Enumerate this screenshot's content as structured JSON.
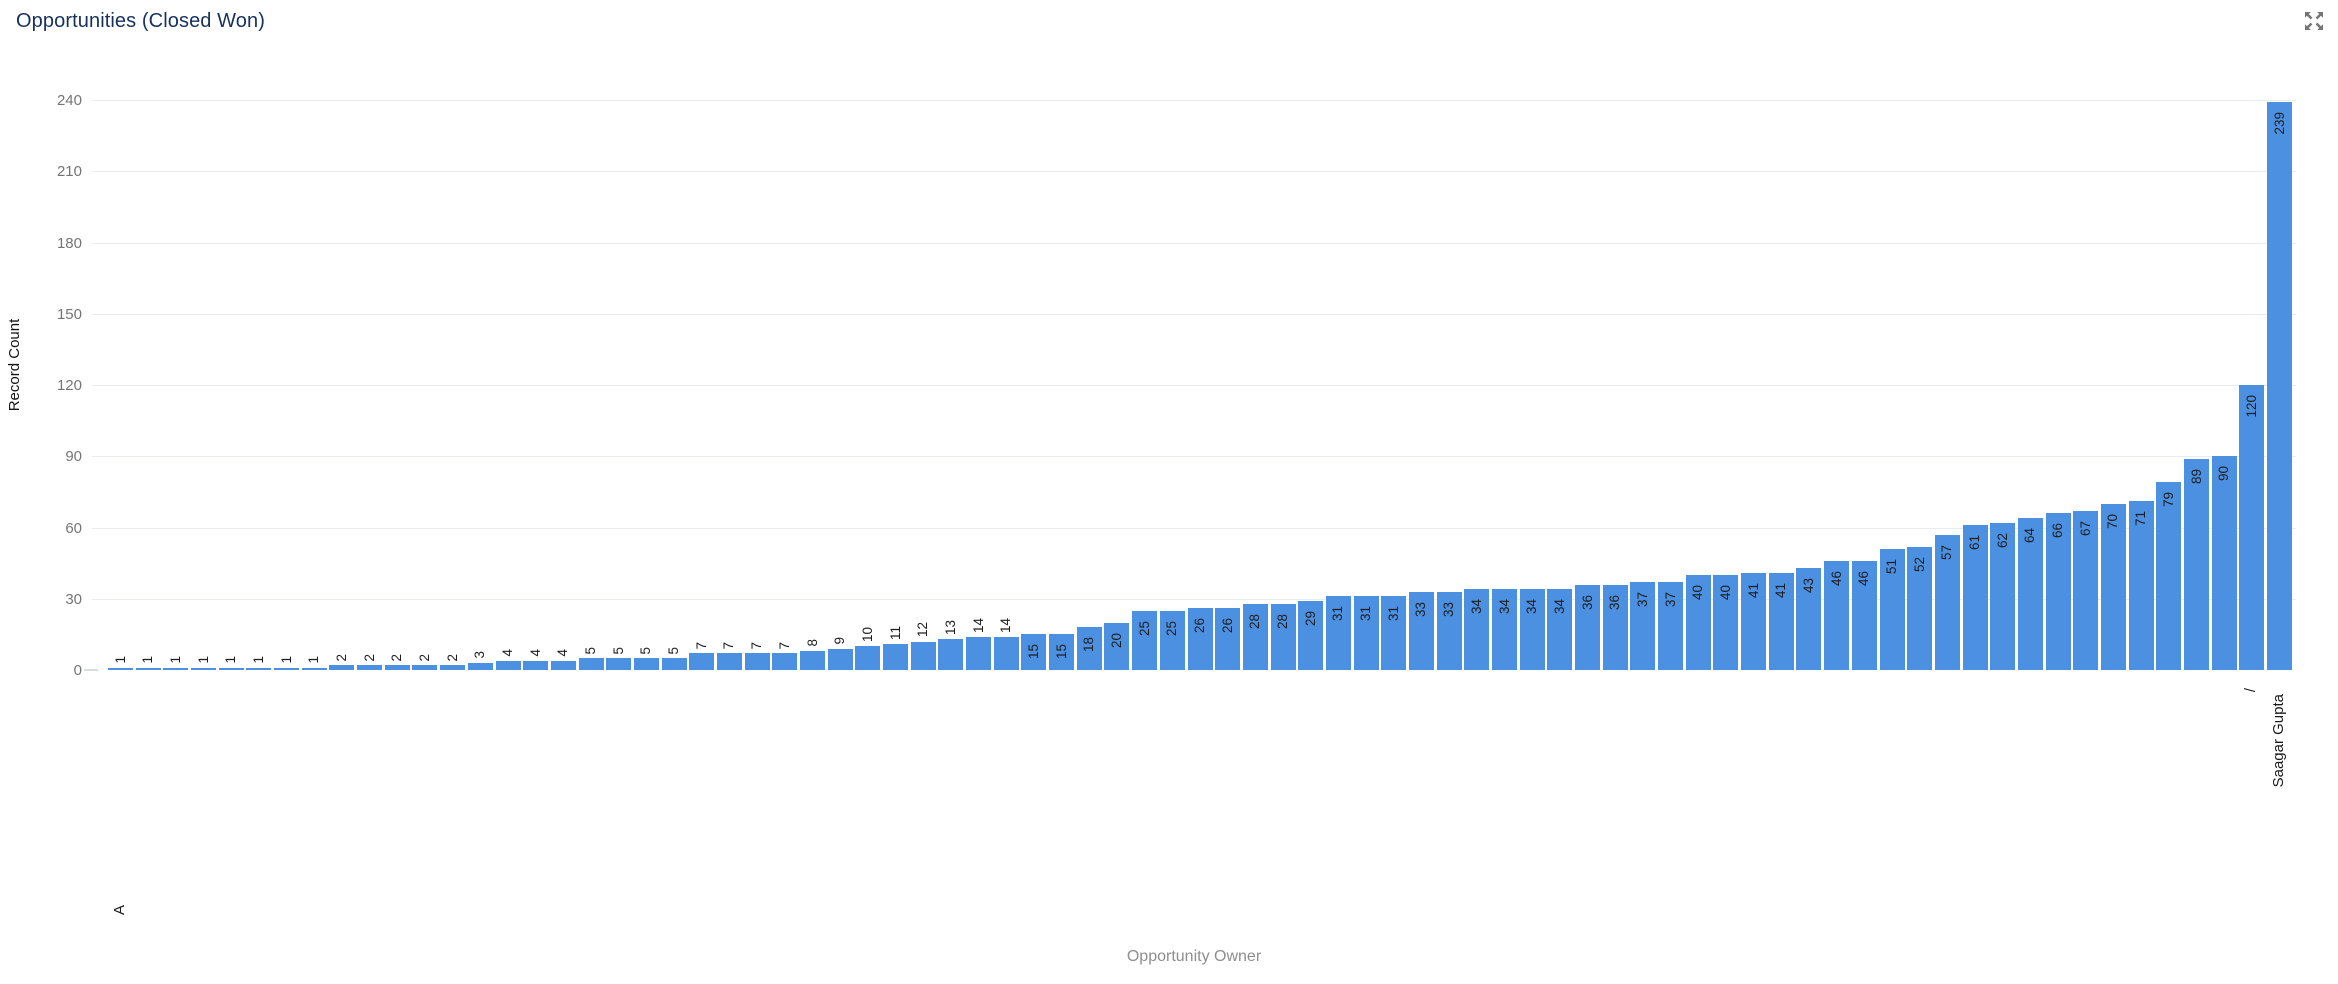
{
  "card": {
    "title": "Opportunities (Closed Won)",
    "expand_icon": "expand-arrows-icon",
    "title_color": "#16325c",
    "icon_color": "#757575"
  },
  "chart_data": {
    "type": "bar",
    "title": "Opportunities (Closed Won)",
    "xlabel": "Opportunity Owner",
    "ylabel": "Record Count",
    "ylim": [
      0,
      240
    ],
    "yticks": [
      0,
      30,
      60,
      90,
      120,
      150,
      180,
      210,
      240
    ],
    "grid": true,
    "legend": "none",
    "bar_color": "#4c90e2",
    "value_label_color": "#1e1e1e",
    "value_label_inside_threshold": 15,
    "values": [
      1,
      1,
      1,
      1,
      1,
      1,
      1,
      1,
      2,
      2,
      2,
      2,
      2,
      3,
      4,
      4,
      4,
      5,
      5,
      5,
      5,
      7,
      7,
      7,
      7,
      8,
      9,
      10,
      11,
      12,
      13,
      14,
      14,
      15,
      15,
      18,
      20,
      25,
      25,
      26,
      26,
      28,
      28,
      29,
      31,
      31,
      31,
      33,
      33,
      34,
      34,
      34,
      34,
      36,
      36,
      37,
      37,
      40,
      40,
      41,
      41,
      43,
      46,
      46,
      51,
      52,
      57,
      61,
      62,
      64,
      66,
      67,
      70,
      71,
      79,
      89,
      90,
      120,
      239
    ],
    "x_axis_labels": [
      {
        "index": 0,
        "label": "A",
        "offset": 235
      },
      {
        "index": 77,
        "label": "/",
        "offset": 18
      },
      {
        "index": 78,
        "label": "Saagar Gupta",
        "offset": 24
      }
    ]
  }
}
